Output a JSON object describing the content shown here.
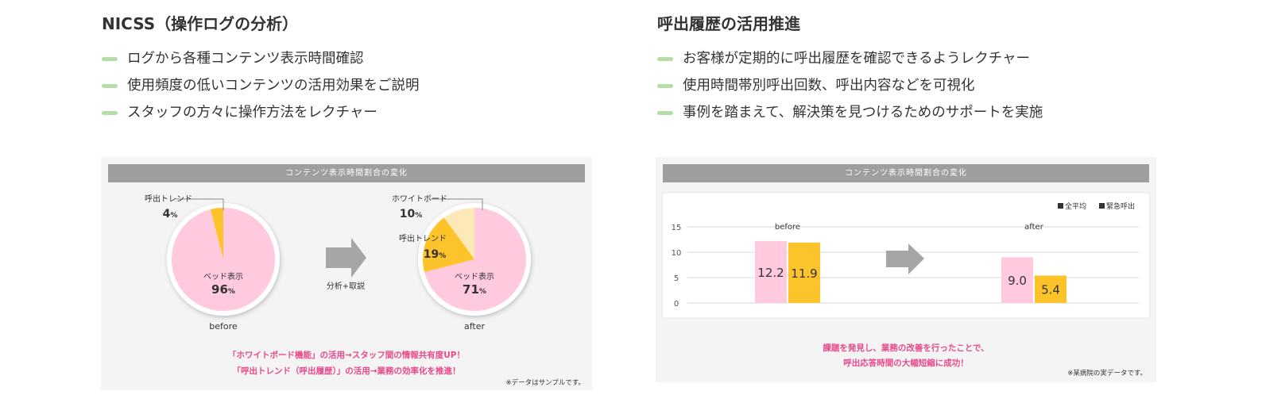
{
  "left": {
    "title": "NICSS（操作ログの分析）",
    "bullets": [
      "ログから各種コンテンツ表示時間確認",
      "使用頻度の低いコンテンツの活用効果をご説明",
      "スタッフの方々に操作方法をレクチャー"
    ],
    "panel_title": "コンテンツ表示時間割合の変化",
    "arrow_label": "分析+取説",
    "callout_1": "「ホワイトボード機能」の活用→スタッフ間の情報共有度UP！",
    "callout_2": "「呼出トレンド（呼出履歴）」の活用→業務の効率化を推進！",
    "note": "※データはサンプルです。"
  },
  "right": {
    "title": "呼出履歴の活用推進",
    "bullets": [
      "お客様が定期的に呼出履歴を確認できるようレクチャー",
      "使用時間帯別呼出回数、呼出内容などを可視化",
      "事例を踏まえて、解決策を見つけるためのサポートを実施"
    ],
    "panel_title": "コンテンツ表示時間割合の変化",
    "callout_1": "課題を発見し、業務の改善を行ったことで、",
    "callout_2": "呼出応答時間の大幅短縮に成功！",
    "note": "※某病院の実データです。"
  },
  "colors": {
    "pink": "#ffc9de",
    "yellow": "#fdc32a",
    "cream": "#fde9b8",
    "accent": "#e84a8a",
    "bullet": "#b6dca8"
  },
  "chart_data": [
    {
      "type": "pie",
      "label": "before",
      "slices": [
        {
          "name": "ベッド表示",
          "value": 96,
          "unit": "%",
          "color": "#ffc9de"
        },
        {
          "name": "呼出トレンド",
          "value": 4,
          "unit": "%",
          "color": "#fdc32a"
        }
      ]
    },
    {
      "type": "pie",
      "label": "after",
      "slices": [
        {
          "name": "ベッド表示",
          "value": 71,
          "unit": "%",
          "color": "#ffc9de"
        },
        {
          "name": "呼出トレンド",
          "value": 19,
          "unit": "%",
          "color": "#fdc32a"
        },
        {
          "name": "ホワイトボード",
          "value": 10,
          "unit": "%",
          "color": "#fde9b8"
        }
      ]
    },
    {
      "type": "bar",
      "categories": [
        "before",
        "after"
      ],
      "series": [
        {
          "name": "全平均",
          "values": [
            12.2,
            9.0
          ],
          "labels": [
            "12.2",
            "9.0"
          ],
          "color": "#ffc9de"
        },
        {
          "name": "緊急呼出",
          "values": [
            11.9,
            5.4
          ],
          "labels": [
            "11.9",
            "5.4"
          ],
          "color": "#fdc32a"
        }
      ],
      "ylim": [
        0,
        15
      ],
      "yticks": [
        0,
        5,
        10,
        15
      ],
      "legend": "top-right",
      "grid": true
    }
  ]
}
